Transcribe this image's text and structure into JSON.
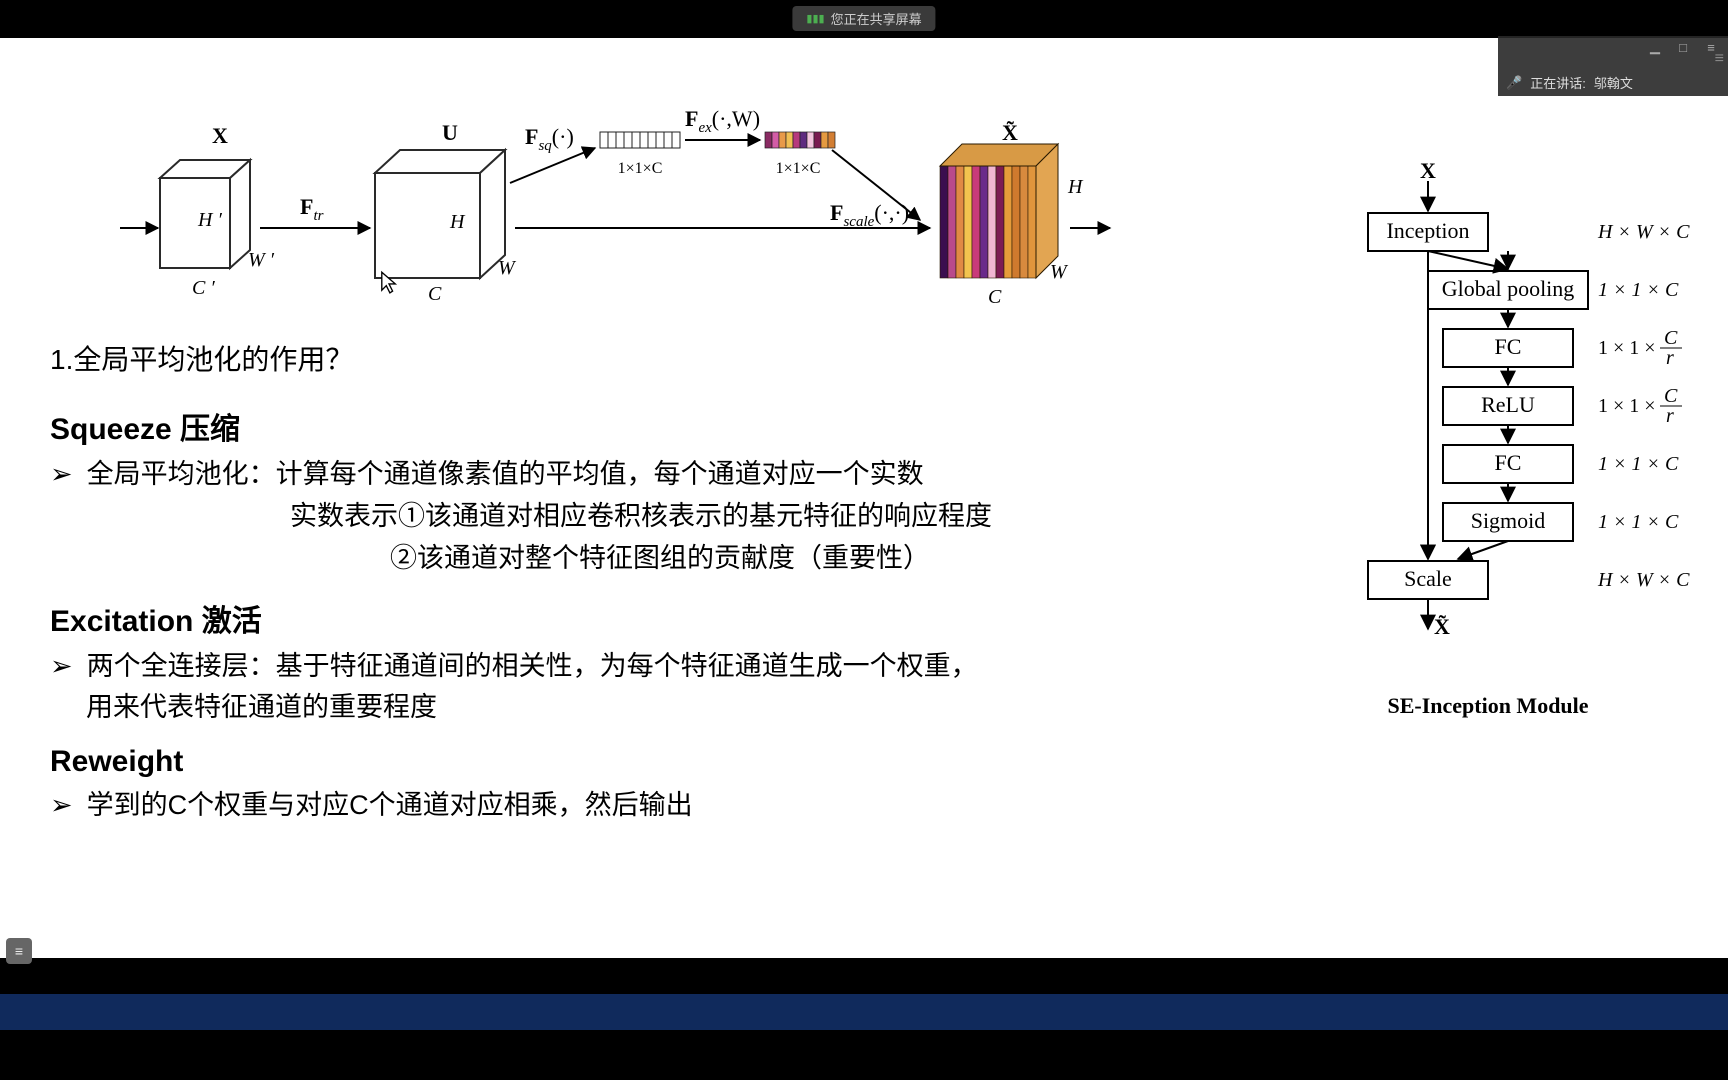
{
  "meeting": {
    "share_text": "您正在共享屏幕",
    "speaking_label": "正在讲话:",
    "speaker_name": "邬翰文"
  },
  "senet": {
    "input_label": "X",
    "input_dims": {
      "h": "H ′",
      "w": "W ′",
      "c": "C ′"
    },
    "f_tr": "F",
    "f_tr_sub": "tr",
    "mid_label": "U",
    "mid_dims": {
      "h": "H",
      "w": "W",
      "c": "C"
    },
    "f_sq": "F",
    "f_sq_sub": "sq",
    "f_sq_arg": "(·)",
    "vec1_dim": "1×1×C",
    "f_ex": "F",
    "f_ex_sub": "ex",
    "f_ex_arg": "(·,W)",
    "vec2_dim": "1×1×C",
    "f_scale": "F",
    "f_scale_sub": "scale",
    "f_scale_arg": "(·,·)",
    "out_label": "X̃",
    "out_dims": {
      "h": "H",
      "w": "W",
      "c": "C"
    },
    "stripe_colors": [
      "#3b0e4f",
      "#b94a8c",
      "#e08a45",
      "#f2c44f",
      "#c93a7a",
      "#6a2a8a",
      "#f1b6d2",
      "#7d1b53",
      "#e69c3a",
      "#cf7a2e",
      "#d88a3e",
      "#e0953c"
    ],
    "vec2_colors": [
      "#8a2b63",
      "#d35ca6",
      "#e89a4a",
      "#f0bf55",
      "#b63a7d",
      "#5e2a7f",
      "#f3c4dd",
      "#791a50",
      "#e59a40",
      "#d27e33"
    ]
  },
  "inception": {
    "in_label": "X",
    "out_label": "X̃",
    "boxes": [
      "Inception",
      "Global pooling",
      "FC",
      "ReLU",
      "FC",
      "Sigmoid",
      "Scale"
    ],
    "dims": [
      "H × W × C",
      "1 × 1 × C",
      "",
      "",
      "1 × 1 × C",
      "1 × 1 × C",
      "H × W × C"
    ],
    "frac_dims_idx": [
      2,
      3
    ],
    "caption": "SE-Inception Module"
  },
  "text": {
    "q1": "1.全局平均池化的作用？",
    "squeeze_title": "Squeeze 压缩",
    "squeeze_l1a": "全局平均池化：",
    "squeeze_l1b": "计算每个通道像素值的平均值，每个通道对应一个实数",
    "squeeze_l2": "实数表示①该通道对相应卷积核表示的基元特征的响应程度",
    "squeeze_l3": "②该通道对整个特征图组的贡献度（重要性）",
    "excite_title": "Excitation 激活",
    "excite_l1a": "两个全连接层：",
    "excite_l1b": "基于特征通道间的相关性，为每个特征通道生成一个权重，",
    "excite_l2": "用来代表特征通道的重要程度",
    "reweight_title": "Reweight",
    "reweight_l1": "学到的C个权重与对应C个通道对应相乘，然后输出"
  },
  "colors": {
    "bg": "#ffffff",
    "footer": "#102a5c",
    "overlay": "#3a3a3a"
  }
}
